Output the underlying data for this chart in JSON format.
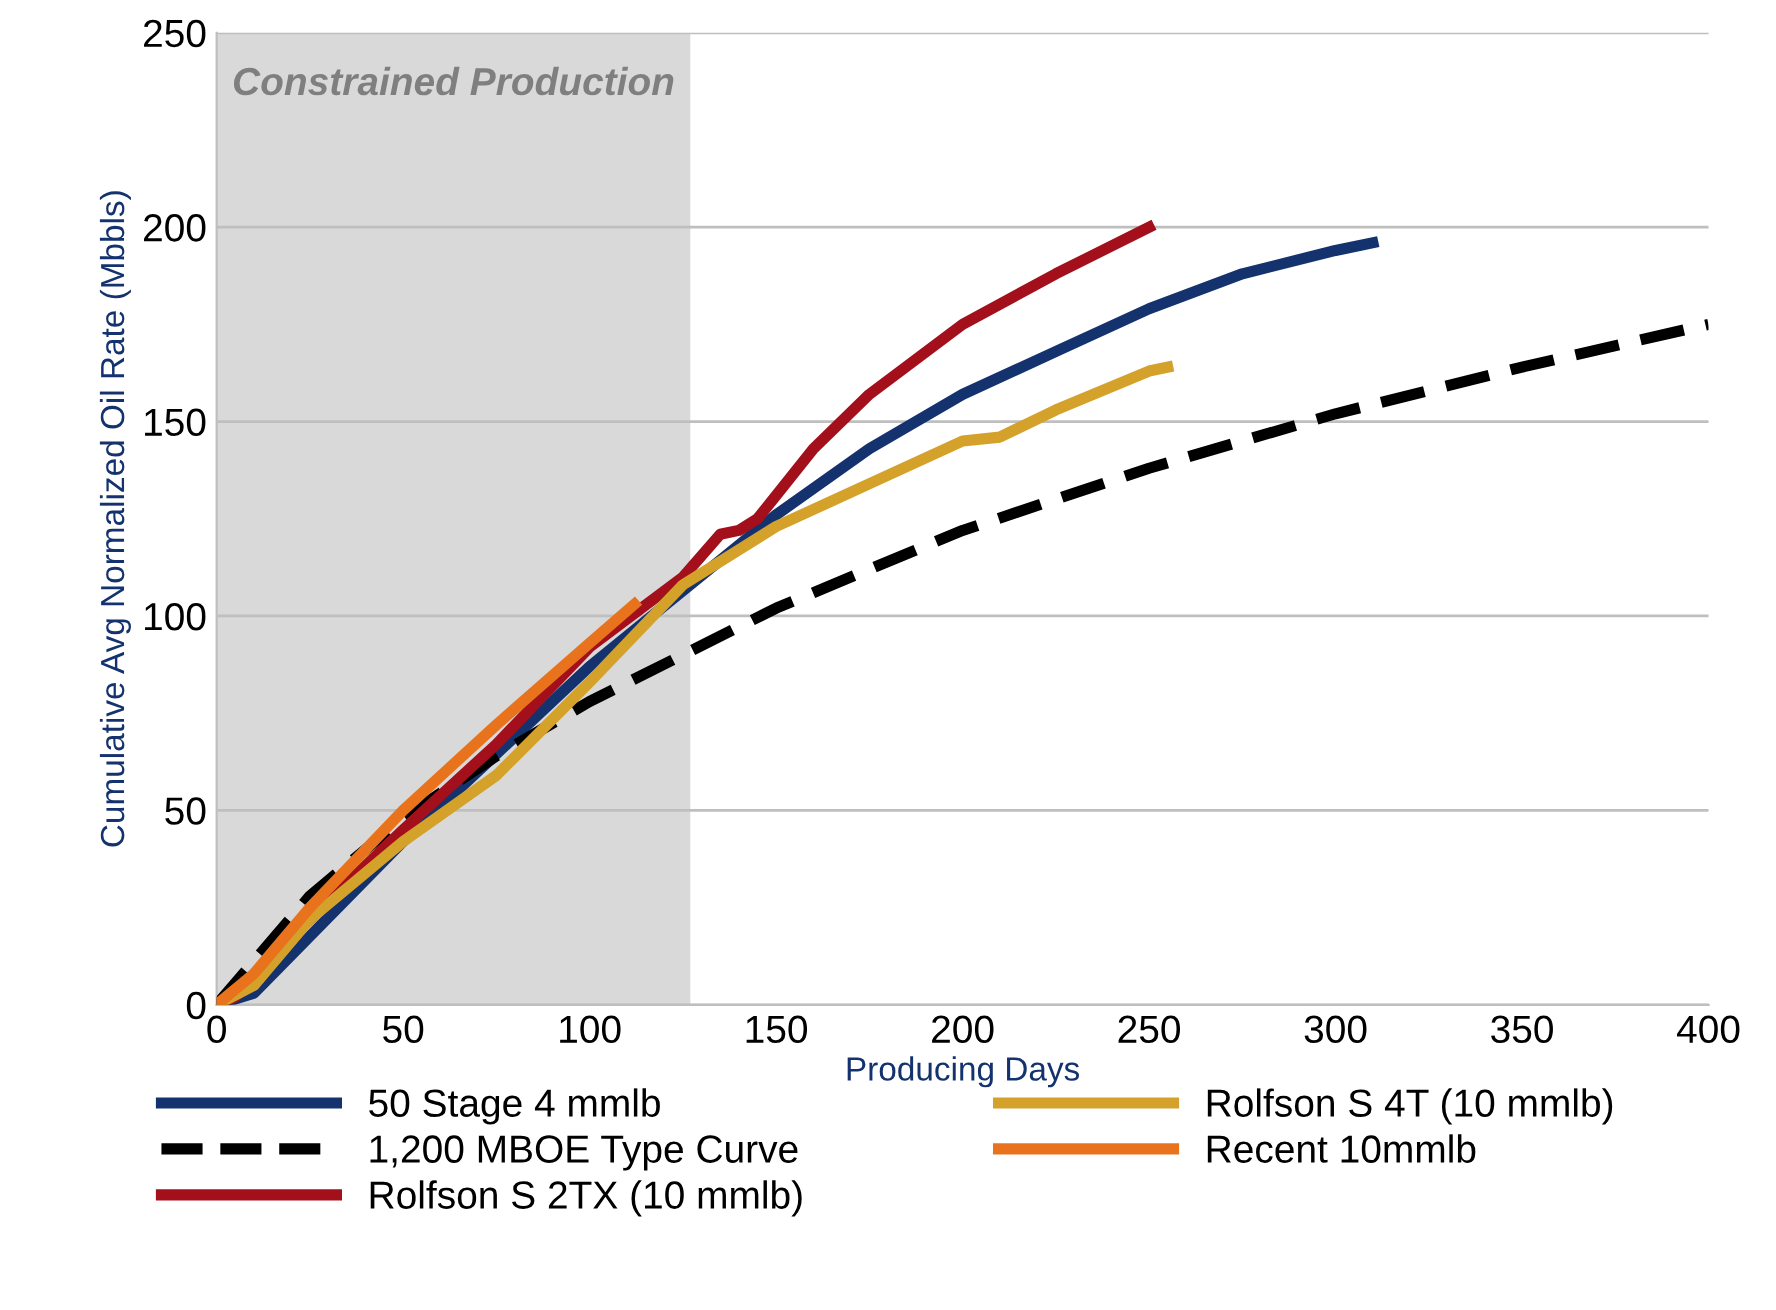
{
  "chart_data": {
    "type": "line",
    "xlabel": "Producing Days",
    "ylabel": "Cumulative Avg Normalized Oil Rate (Mbbls)",
    "xlim": [
      0,
      400
    ],
    "xticks": [
      0,
      50,
      100,
      150,
      200,
      250,
      300,
      350,
      400
    ],
    "ylim": [
      0,
      250
    ],
    "yticks": [
      0,
      50,
      100,
      150,
      200,
      250
    ],
    "grid": "y",
    "legend": "bottom",
    "marker": "none",
    "bands": [
      {
        "axis": "x",
        "from": 0,
        "to": 127,
        "label": "Constrained Production",
        "color": "#d9d9d9"
      }
    ],
    "series": [
      {
        "name": "50 Stage 4 mmlb",
        "color": "#14336e",
        "x": [
          0,
          10,
          50,
          100,
          150,
          175,
          200,
          225,
          250,
          275,
          300,
          310
        ],
        "values": [
          0,
          3,
          42,
          87,
          126,
          143,
          157,
          168,
          179,
          188,
          194,
          196
        ]
      },
      {
        "name": "1,200 MBOE Type Curve",
        "color": "#000000",
        "line_style": "dashed",
        "x": [
          0,
          25,
          50,
          75,
          100,
          125,
          150,
          200,
          250,
          300,
          350,
          400
        ],
        "values": [
          0,
          28,
          48,
          64,
          78,
          90,
          102,
          122,
          138,
          152,
          164,
          175
        ]
      },
      {
        "name": "Rolfson S 2TX (10 mmlb)",
        "color": "#a3101c",
        "x": [
          0,
          5,
          25,
          50,
          75,
          100,
          125,
          135,
          140,
          145,
          150,
          160,
          175,
          200,
          225,
          250
        ],
        "values": [
          0,
          2,
          22,
          45,
          67,
          92,
          110,
          121,
          122,
          125,
          131,
          143,
          157,
          175,
          188,
          200
        ]
      },
      {
        "name": "Rolfson S 4T (10 mmlb)",
        "color": "#d4a22b",
        "x": [
          0,
          10,
          25,
          50,
          75,
          100,
          125,
          150,
          175,
          200,
          210,
          225,
          250,
          255
        ],
        "values": [
          0,
          5,
          22,
          42,
          59,
          83,
          108,
          123,
          134,
          145,
          146,
          153,
          163,
          164
        ]
      },
      {
        "name": "Recent 10mmlb",
        "color": "#e8731c",
        "x": [
          0,
          10,
          25,
          50,
          75,
          100,
          112
        ],
        "values": [
          0,
          8,
          25,
          50,
          72,
          93,
          103
        ]
      }
    ]
  }
}
